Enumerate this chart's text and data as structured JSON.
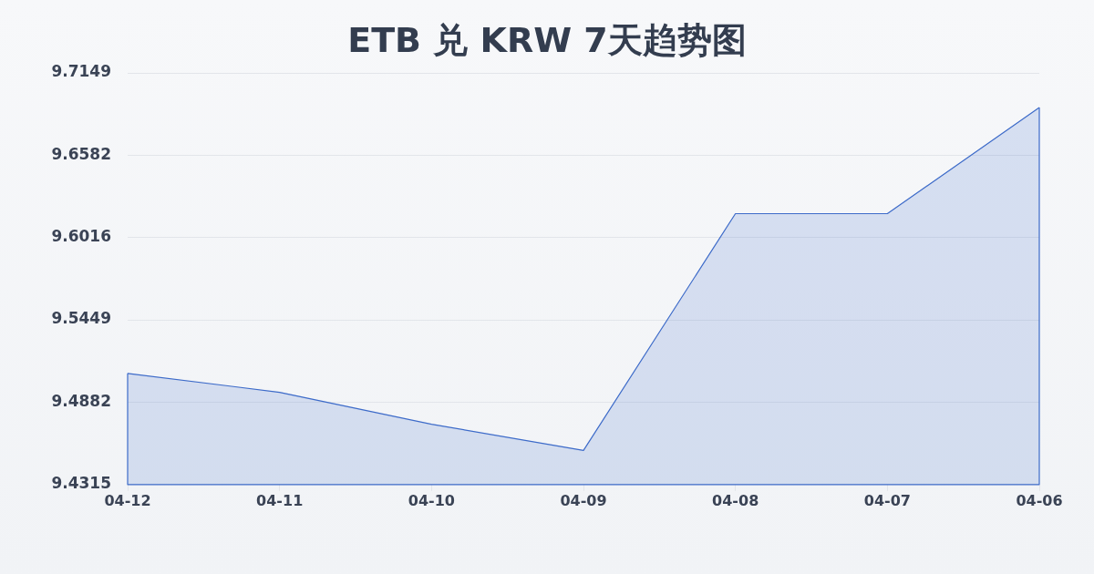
{
  "chart_data": {
    "type": "area",
    "title": "ETB 兑 KRW 7天趋势图",
    "categories": [
      "04-12",
      "04-11",
      "04-10",
      "04-09",
      "04-08",
      "04-07",
      "04-06"
    ],
    "series": [
      {
        "color": "#3d6bc9",
        "values": [
          9.508,
          9.495,
          9.473,
          9.455,
          9.618,
          9.618,
          9.691
        ]
      }
    ],
    "ylim": [
      9.4315,
      9.7149
    ],
    "yticks": [
      9.4315,
      9.4882,
      9.5449,
      9.6016,
      9.6582,
      9.7149
    ],
    "grid": "y"
  }
}
